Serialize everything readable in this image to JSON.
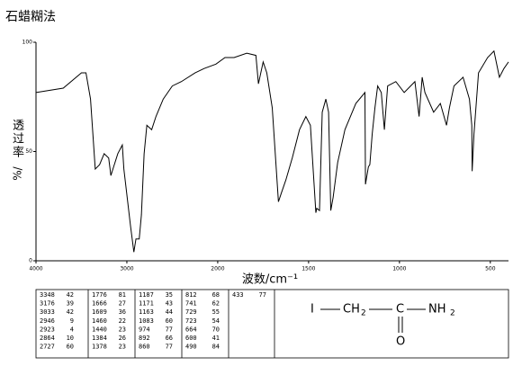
{
  "title": "石蜡糊法",
  "chart_data": {
    "type": "line",
    "ylabel_chars": [
      "透",
      "过",
      "率"
    ],
    "ylabel_unit": "%/",
    "xlabel": "波数/cm⁻¹",
    "xlim": [
      4000,
      400
    ],
    "xticks": [
      4000,
      3000,
      2000,
      1500,
      1000,
      500
    ],
    "ylim": [
      0,
      100
    ],
    "yticks": [
      0,
      50,
      100
    ],
    "color": "#000000",
    "x": [
      4000,
      3700,
      3500,
      3450,
      3400,
      3348,
      3300,
      3250,
      3200,
      3176,
      3100,
      3050,
      3033,
      2960,
      2923,
      2900,
      2864,
      2840,
      2810,
      2780,
      2727,
      2680,
      2600,
      2500,
      2400,
      2250,
      2150,
      2020,
      1960,
      1910,
      1840,
      1790,
      1776,
      1750,
      1730,
      1700,
      1666,
      1650,
      1625,
      1590,
      1550,
      1515,
      1490,
      1460,
      1455,
      1440,
      1425,
      1405,
      1390,
      1378,
      1365,
      1340,
      1300,
      1240,
      1190,
      1187,
      1171,
      1163,
      1150,
      1135,
      1120,
      1100,
      1083,
      1065,
      1020,
      974,
      915,
      892,
      875,
      860,
      812,
      775,
      741,
      725,
      700,
      650,
      615,
      602,
      600,
      590,
      565,
      515,
      480,
      450,
      425,
      400
    ],
    "values": [
      77,
      79,
      86,
      86,
      74,
      42,
      44,
      49,
      47,
      39,
      49,
      53,
      42,
      16,
      4,
      10,
      10,
      21,
      49,
      62,
      60,
      66,
      74,
      80,
      82,
      86,
      88,
      90,
      93,
      93,
      95,
      94,
      81,
      91,
      86,
      70,
      27,
      31,
      37,
      47,
      60,
      66,
      62,
      22,
      24,
      23,
      68,
      74,
      68,
      23,
      29,
      45,
      60,
      72,
      77,
      35,
      43,
      44,
      58,
      70,
      80,
      77,
      60,
      80,
      82,
      77,
      82,
      66,
      84,
      77,
      68,
      72,
      62,
      70,
      80,
      84,
      74,
      62,
      41,
      58,
      86,
      93,
      96,
      84,
      88,
      91
    ]
  },
  "peak_table": [
    [
      [
        "3348",
        "42"
      ],
      [
        "3176",
        "39"
      ],
      [
        "3033",
        "42"
      ],
      [
        "2946",
        "9"
      ],
      [
        "2923",
        "4"
      ],
      [
        "2864",
        "10"
      ],
      [
        "2727",
        "60"
      ]
    ],
    [
      [
        "1776",
        "81"
      ],
      [
        "1666",
        "27"
      ],
      [
        "1609",
        "36"
      ],
      [
        "1460",
        "22"
      ],
      [
        "1440",
        "23"
      ],
      [
        "1384",
        "26"
      ],
      [
        "1378",
        "23"
      ]
    ],
    [
      [
        "1187",
        "35"
      ],
      [
        "1171",
        "43"
      ],
      [
        "1163",
        "44"
      ],
      [
        "1083",
        "60"
      ],
      [
        "974",
        "77"
      ],
      [
        "892",
        "66"
      ],
      [
        "860",
        "77"
      ]
    ],
    [
      [
        "812",
        "68"
      ],
      [
        "741",
        "62"
      ],
      [
        "729",
        "55"
      ],
      [
        "723",
        "54"
      ],
      [
        "664",
        "70"
      ],
      [
        "600",
        "41"
      ],
      [
        "490",
        "84"
      ]
    ],
    [
      [
        "433",
        "77"
      ]
    ]
  ],
  "structure": {
    "atoms": [
      "I",
      "CH",
      "C",
      "NH",
      "O"
    ],
    "subscripts": [
      "2",
      "2"
    ]
  }
}
